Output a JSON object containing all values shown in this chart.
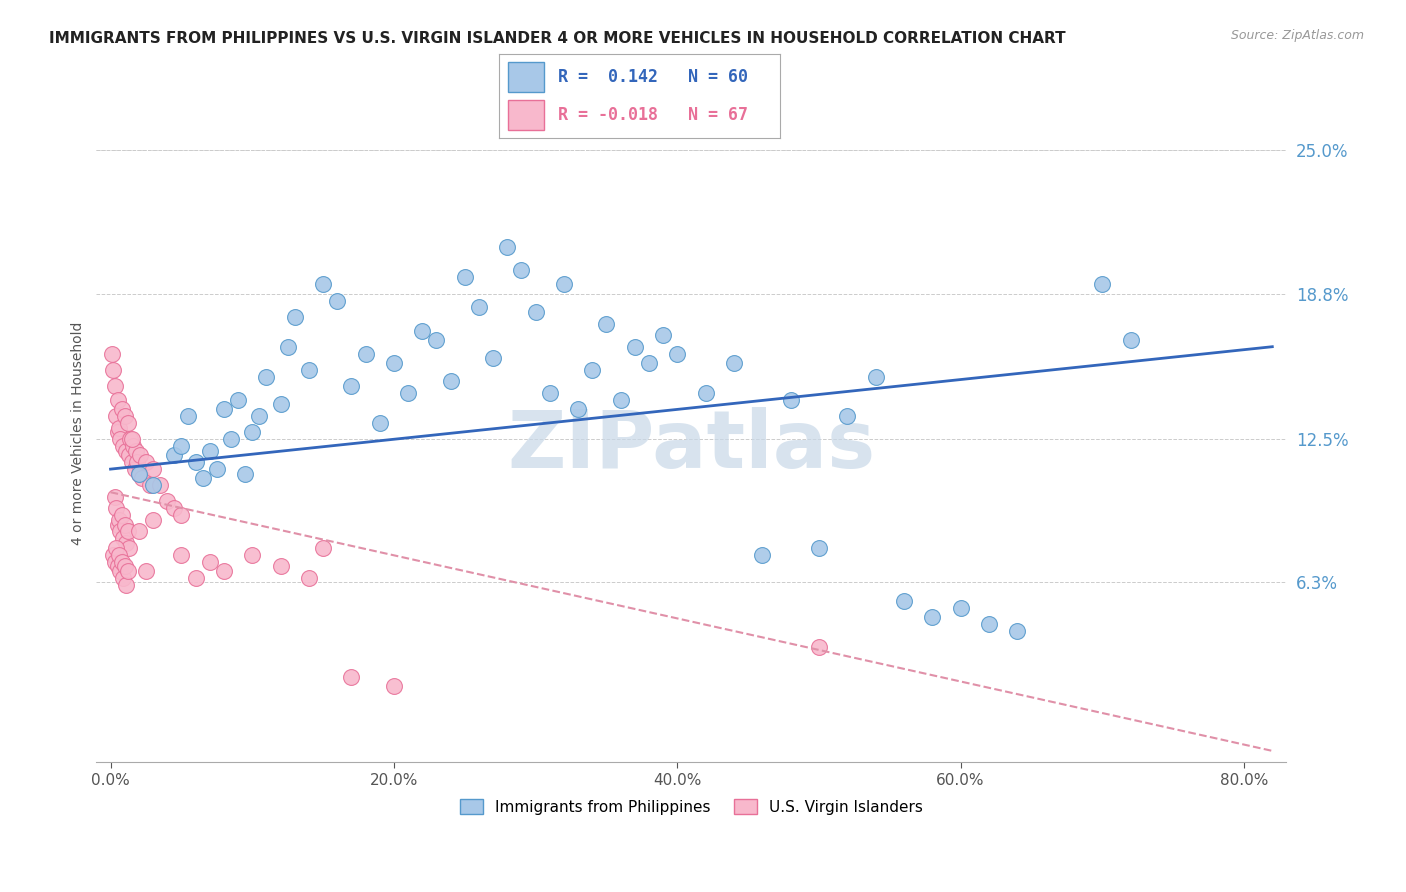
{
  "title": "IMMIGRANTS FROM PHILIPPINES VS U.S. VIRGIN ISLANDER 4 OR MORE VEHICLES IN HOUSEHOLD CORRELATION CHART",
  "source": "Source: ZipAtlas.com",
  "ylabel": "4 or more Vehicles in Household",
  "xlabel_vals": [
    0.0,
    20.0,
    40.0,
    60.0,
    80.0
  ],
  "ylabel_right_ticks": [
    "6.3%",
    "12.5%",
    "18.8%",
    "25.0%"
  ],
  "ylabel_right_vals": [
    6.3,
    12.5,
    18.8,
    25.0
  ],
  "ylim": [
    -1.5,
    27.0
  ],
  "xlim": [
    -1.0,
    83.0
  ],
  "blue_color": "#a8c8e8",
  "blue_edge": "#5599cc",
  "pink_color": "#f8b8cc",
  "pink_edge": "#e87098",
  "trend_blue_color": "#3366bb",
  "trend_pink_color": "#e090a8",
  "watermark": "ZIPatlas",
  "watermark_color": "#c8d8e8",
  "legend_R1": "0.142",
  "legend_N1": "60",
  "legend_R2": "-0.018",
  "legend_N2": "67",
  "blue_x": [
    2.0,
    3.0,
    4.5,
    5.0,
    5.5,
    6.0,
    6.5,
    7.0,
    7.5,
    8.0,
    8.5,
    9.0,
    9.5,
    10.0,
    10.5,
    11.0,
    12.0,
    12.5,
    13.0,
    14.0,
    15.0,
    16.0,
    17.0,
    18.0,
    19.0,
    20.0,
    21.0,
    22.0,
    23.0,
    24.0,
    25.0,
    26.0,
    27.0,
    28.0,
    29.0,
    30.0,
    31.0,
    32.0,
    33.0,
    34.0,
    35.0,
    36.0,
    37.0,
    38.0,
    39.0,
    40.0,
    42.0,
    44.0,
    46.0,
    48.0,
    50.0,
    52.0,
    54.0,
    56.0,
    58.0,
    60.0,
    62.0,
    64.0,
    70.0,
    72.0
  ],
  "blue_y": [
    11.0,
    10.5,
    11.8,
    12.2,
    13.5,
    11.5,
    10.8,
    12.0,
    11.2,
    13.8,
    12.5,
    14.2,
    11.0,
    12.8,
    13.5,
    15.2,
    14.0,
    16.5,
    17.8,
    15.5,
    19.2,
    18.5,
    14.8,
    16.2,
    13.2,
    15.8,
    14.5,
    17.2,
    16.8,
    15.0,
    19.5,
    18.2,
    16.0,
    20.8,
    19.8,
    18.0,
    14.5,
    19.2,
    13.8,
    15.5,
    17.5,
    14.2,
    16.5,
    15.8,
    17.0,
    16.2,
    14.5,
    15.8,
    7.5,
    14.2,
    7.8,
    13.5,
    15.2,
    5.5,
    4.8,
    5.2,
    4.5,
    4.2,
    19.2,
    16.8
  ],
  "pink_x": [
    0.1,
    0.2,
    0.3,
    0.4,
    0.5,
    0.5,
    0.6,
    0.7,
    0.8,
    0.9,
    1.0,
    1.1,
    1.2,
    1.3,
    1.4,
    1.5,
    1.6,
    1.7,
    1.8,
    1.9,
    2.0,
    2.1,
    2.2,
    2.5,
    2.8,
    3.0,
    3.5,
    4.0,
    4.5,
    5.0,
    0.3,
    0.4,
    0.5,
    0.6,
    0.7,
    0.8,
    0.9,
    1.0,
    1.1,
    1.2,
    1.3,
    0.2,
    0.3,
    0.4,
    0.5,
    0.6,
    0.7,
    0.8,
    0.9,
    1.0,
    1.1,
    1.2,
    1.5,
    2.0,
    2.5,
    3.0,
    5.0,
    6.0,
    7.0,
    8.0,
    10.0,
    12.0,
    14.0,
    15.0,
    17.0,
    20.0,
    50.0
  ],
  "pink_y": [
    16.2,
    15.5,
    14.8,
    13.5,
    12.8,
    14.2,
    13.0,
    12.5,
    13.8,
    12.2,
    13.5,
    12.0,
    13.2,
    11.8,
    12.5,
    11.5,
    12.2,
    11.2,
    12.0,
    11.5,
    11.0,
    11.8,
    10.8,
    11.5,
    10.5,
    11.2,
    10.5,
    9.8,
    9.5,
    9.2,
    10.0,
    9.5,
    8.8,
    9.0,
    8.5,
    9.2,
    8.2,
    8.8,
    8.0,
    8.5,
    7.8,
    7.5,
    7.2,
    7.8,
    7.0,
    7.5,
    6.8,
    7.2,
    6.5,
    7.0,
    6.2,
    6.8,
    12.5,
    8.5,
    6.8,
    9.0,
    7.5,
    6.5,
    7.2,
    6.8,
    7.5,
    7.0,
    6.5,
    7.8,
    2.2,
    1.8,
    3.5
  ],
  "blue_trend_x0": 0.0,
  "blue_trend_y0": 11.2,
  "blue_trend_x1": 82.0,
  "blue_trend_y1": 16.5,
  "pink_trend_x0": 0.0,
  "pink_trend_y0": 10.2,
  "pink_trend_x1": 82.0,
  "pink_trend_y1": -1.0
}
